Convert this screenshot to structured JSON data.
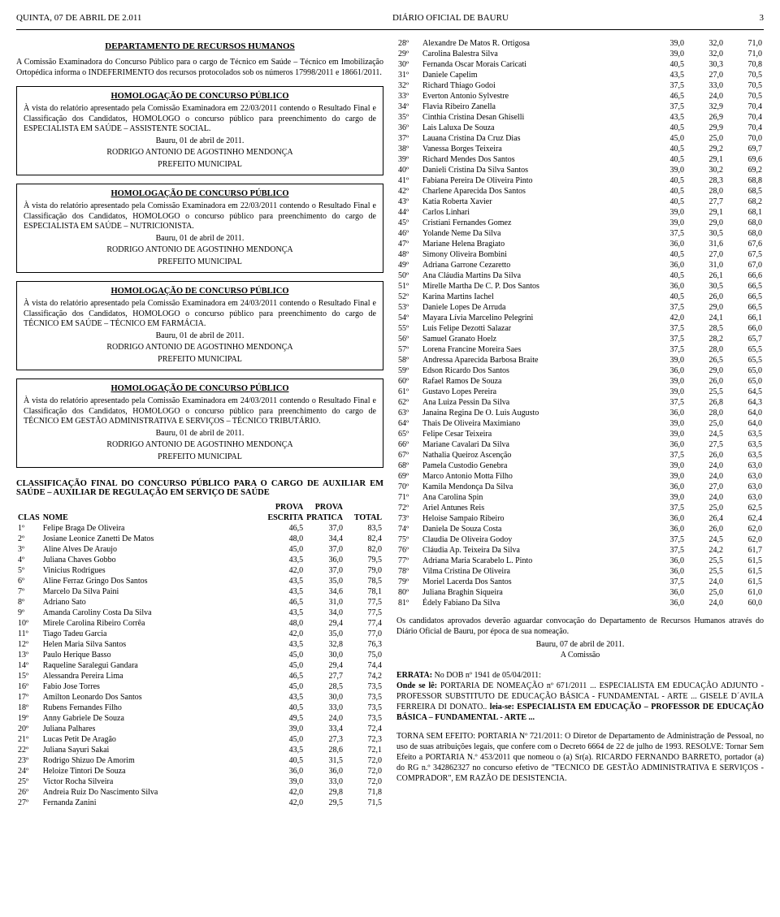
{
  "header": {
    "date": "QUINTA, 07 DE ABRIL DE 2.011",
    "title": "DIÁRIO OFICIAL DE BAURU",
    "page": "3"
  },
  "left": {
    "dept_title": "DEPARTAMENTO DE RECURSOS HUMANOS",
    "intro": "A Comissão Examinadora do Concurso Público para o cargo de Técnico em Saúde – Técnico em Imobilização Ortopédica informa o INDEFERIMENTO dos recursos protocolados sob os números 17998/2011 e 18661/2011.",
    "notices": [
      {
        "title": "HOMOLOGAÇÃO DE CONCURSO PÚBLICO",
        "body": "À vista do relatório apresentado pela Comissão Examinadora em 22/03/2011 contendo o Resultado Final e Classificação dos Candidatos, HOMOLOGO o concurso público para preenchimento do cargo de ESPECIALISTA EM SAÚDE – ASSISTENTE SOCIAL.",
        "date_line": "Bauru, 01 de abril de 2011.",
        "sign1": "RODRIGO ANTONIO DE AGOSTINHO MENDONÇA",
        "sign2": "PREFEITO MUNICIPAL"
      },
      {
        "title": "HOMOLOGAÇÃO DE CONCURSO PÚBLICO",
        "body": "À vista do relatório apresentado pela Comissão Examinadora em 22/03/2011 contendo o Resultado Final e Classificação dos Candidatos, HOMOLOGO o concurso público para preenchimento do cargo de ESPECIALISTA EM SAÚDE – NUTRICIONISTA.",
        "date_line": "Bauru, 01 de abril de 2011.",
        "sign1": "RODRIGO ANTONIO DE AGOSTINHO MENDONÇA",
        "sign2": "PREFEITO MUNICIPAL"
      },
      {
        "title": "HOMOLOGAÇÃO DE CONCURSO PÚBLICO",
        "body": "À vista do relatório apresentado pela Comissão Examinadora em 24/03/2011 contendo o Resultado Final e Classificação dos Candidatos, HOMOLOGO o concurso público para preenchimento do cargo de TÉCNICO EM SAÚDE – TÉCNICO EM FARMÁCIA.",
        "date_line": "Bauru, 01 de abril de 2011.",
        "sign1": "RODRIGO ANTONIO DE AGOSTINHO MENDONÇA",
        "sign2": "PREFEITO MUNICIPAL"
      },
      {
        "title": "HOMOLOGAÇÃO DE CONCURSO PÚBLICO",
        "body": "À vista do relatório apresentado pela Comissão Examinadora em 24/03/2011 contendo o Resultado Final e Classificação dos Candidatos, HOMOLOGO o concurso público para preenchimento do cargo de TÉCNICO EM GESTÃO ADMINISTRATIVA E SERVIÇOS – TÉCNICO TRIBUTÁRIO.",
        "date_line": "Bauru, 01 de abril de 2011.",
        "sign1": "RODRIGO ANTONIO DE AGOSTINHO MENDONÇA",
        "sign2": "PREFEITO MUNICIPAL"
      }
    ],
    "class_title": "CLASSIFICAÇÃO FINAL DO CONCURSO PÚBLICO PARA O CARGO DE AUXILIAR EM SAÚDE – AUXILIAR DE REGULAÇÃO EM SERVIÇO DE SAÚDE",
    "table_head": {
      "c1": "CLAS",
      "c2": "NOME",
      "c3a": "PROVA",
      "c3b": "ESCRITA",
      "c4a": "PROVA",
      "c4b": "PRATICA",
      "c5": "TOTAL"
    },
    "rows": [
      [
        "1º",
        "Felipe Braga De Oliveira",
        "46,5",
        "37,0",
        "83,5"
      ],
      [
        "2º",
        "Josiane Leonice Zanetti De Matos",
        "48,0",
        "34,4",
        "82,4"
      ],
      [
        "3º",
        "Aline Alves De Araujo",
        "45,0",
        "37,0",
        "82,0"
      ],
      [
        "4º",
        "Juliana Chaves Gobbo",
        "43,5",
        "36,0",
        "79,5"
      ],
      [
        "5º",
        "Vinicius Rodrigues",
        "42,0",
        "37,0",
        "79,0"
      ],
      [
        "6º",
        "Aline Ferraz Gringo Dos Santos",
        "43,5",
        "35,0",
        "78,5"
      ],
      [
        "7º",
        "Marcelo Da Silva Paini",
        "43,5",
        "34,6",
        "78,1"
      ],
      [
        "8º",
        "Adriano Sato",
        "46,5",
        "31,0",
        "77,5"
      ],
      [
        "9º",
        "Amanda Caroliny Costa Da Silva",
        "43,5",
        "34,0",
        "77,5"
      ],
      [
        "10º",
        "Mirele Carolina Ribeiro Corrêa",
        "48,0",
        "29,4",
        "77,4"
      ],
      [
        "11º",
        "Tiago Tadeu Garcia",
        "42,0",
        "35,0",
        "77,0"
      ],
      [
        "12º",
        "Helen Maria Silva Santos",
        "43,5",
        "32,8",
        "76,3"
      ],
      [
        "13º",
        "Paulo Herique Basso",
        "45,0",
        "30,0",
        "75,0"
      ],
      [
        "14º",
        "Raqueline Saralegui Gandara",
        "45,0",
        "29,4",
        "74,4"
      ],
      [
        "15º",
        "Alessandra Pereira Lima",
        "46,5",
        "27,7",
        "74,2"
      ],
      [
        "16º",
        "Fabio Jose Torres",
        "45,0",
        "28,5",
        "73,5"
      ],
      [
        "17º",
        "Amilton Leonardo Dos Santos",
        "43,5",
        "30,0",
        "73,5"
      ],
      [
        "18º",
        "Rubens Fernandes Filho",
        "40,5",
        "33,0",
        "73,5"
      ],
      [
        "19º",
        "Anny Gabriele De Souza",
        "49,5",
        "24,0",
        "73,5"
      ],
      [
        "20º",
        "Juliana Palhares",
        "39,0",
        "33,4",
        "72,4"
      ],
      [
        "21º",
        "Lucas Petit De Aragão",
        "45,0",
        "27,3",
        "72,3"
      ],
      [
        "22º",
        "Juliana Sayuri Sakai",
        "43,5",
        "28,6",
        "72,1"
      ],
      [
        "23º",
        "Rodrigo Shizuo De Amorim",
        "40,5",
        "31,5",
        "72,0"
      ],
      [
        "24º",
        "Heloize Tintori De Souza",
        "36,0",
        "36,0",
        "72,0"
      ],
      [
        "25º",
        "Victor Rocha Silveira",
        "39,0",
        "33,0",
        "72,0"
      ],
      [
        "26º",
        "Andreia Ruiz Do Nascimento Silva",
        "42,0",
        "29,8",
        "71,8"
      ],
      [
        "27º",
        "Fernanda Zanini",
        "42,0",
        "29,5",
        "71,5"
      ]
    ]
  },
  "right": {
    "rows": [
      [
        "28º",
        "Alexandre De Matos R. Ortigosa",
        "39,0",
        "32,0",
        "71,0"
      ],
      [
        "29º",
        "Carolina Balestra Silva",
        "39,0",
        "32,0",
        "71,0"
      ],
      [
        "30º",
        "Fernanda Oscar Morais Caricati",
        "40,5",
        "30,3",
        "70,8"
      ],
      [
        "31º",
        "Daniele Capelim",
        "43,5",
        "27,0",
        "70,5"
      ],
      [
        "32º",
        "Richard Thiago Godoi",
        "37,5",
        "33,0",
        "70,5"
      ],
      [
        "33º",
        "Everton Antonio Sylvestre",
        "46,5",
        "24,0",
        "70,5"
      ],
      [
        "34º",
        "Flavia Ribeiro Zanella",
        "37,5",
        "32,9",
        "70,4"
      ],
      [
        "35º",
        "Cinthia Cristina Desan Ghiselli",
        "43,5",
        "26,9",
        "70,4"
      ],
      [
        "36º",
        "Lais Laluxa De Souza",
        "40,5",
        "29,9",
        "70,4"
      ],
      [
        "37º",
        "Lauana Cristina Da Cruz Dias",
        "45,0",
        "25,0",
        "70,0"
      ],
      [
        "38º",
        "Vanessa Borges Teixeira",
        "40,5",
        "29,2",
        "69,7"
      ],
      [
        "39º",
        "Richard Mendes Dos Santos",
        "40,5",
        "29,1",
        "69,6"
      ],
      [
        "40º",
        "Danieli Cristina Da Silva Santos",
        "39,0",
        "30,2",
        "69,2"
      ],
      [
        "41º",
        "Fabiana Pereira De Oliveira Pinto",
        "40,5",
        "28,3",
        "68,8"
      ],
      [
        "42º",
        "Charlene Aparecida Dos Santos",
        "40,5",
        "28,0",
        "68,5"
      ],
      [
        "43º",
        "Katia Roberta Xavier",
        "40,5",
        "27,7",
        "68,2"
      ],
      [
        "44º",
        "Carlos Linhari",
        "39,0",
        "29,1",
        "68,1"
      ],
      [
        "45º",
        "Cristiani Fernandes Gomez",
        "39,0",
        "29,0",
        "68,0"
      ],
      [
        "46º",
        "Yolande Neme Da Silva",
        "37,5",
        "30,5",
        "68,0"
      ],
      [
        "47º",
        "Mariane Helena Bragiato",
        "36,0",
        "31,6",
        "67,6"
      ],
      [
        "48º",
        "Simony Oliveira Bombini",
        "40,5",
        "27,0",
        "67,5"
      ],
      [
        "49º",
        "Adriana Garrone Cezaretto",
        "36,0",
        "31,0",
        "67,0"
      ],
      [
        "50º",
        "Ana Cláudia Martins Da Silva",
        "40,5",
        "26,1",
        "66,6"
      ],
      [
        "51º",
        "Mirelle Martha De C. P. Dos Santos",
        "36,0",
        "30,5",
        "66,5"
      ],
      [
        "52º",
        "Karina Martins Iachel",
        "40,5",
        "26,0",
        "66,5"
      ],
      [
        "53º",
        "Daniele Lopes De Arruda",
        "37,5",
        "29,0",
        "66,5"
      ],
      [
        "54º",
        "Mayara Lívia Marcelino Pelegrini",
        "42,0",
        "24,1",
        "66,1"
      ],
      [
        "55º",
        "Luis Felipe Dezotti Salazar",
        "37,5",
        "28,5",
        "66,0"
      ],
      [
        "56º",
        "Samuel Granato Hoelz",
        "37,5",
        "28,2",
        "65,7"
      ],
      [
        "57º",
        "Lorena Francine Moreira Saes",
        "37,5",
        "28,0",
        "65,5"
      ],
      [
        "58º",
        "Andressa Aparecida Barbosa Braite",
        "39,0",
        "26,5",
        "65,5"
      ],
      [
        "59º",
        "Edson Ricardo Dos Santos",
        "36,0",
        "29,0",
        "65,0"
      ],
      [
        "60º",
        "Rafael Ramos De Souza",
        "39,0",
        "26,0",
        "65,0"
      ],
      [
        "61º",
        "Gustavo Lopes Pereira",
        "39,0",
        "25,5",
        "64,5"
      ],
      [
        "62º",
        "Ana Luiza Pessin Da Silva",
        "37,5",
        "26,8",
        "64,3"
      ],
      [
        "63º",
        "Janaina Regina De O. Luis Augusto",
        "36,0",
        "28,0",
        "64,0"
      ],
      [
        "64º",
        "Thais De Oliveira Maximiano",
        "39,0",
        "25,0",
        "64,0"
      ],
      [
        "65º",
        "Felipe Cesar Teixeira",
        "39,0",
        "24,5",
        "63,5"
      ],
      [
        "66º",
        "Mariane Cavalari Da Silva",
        "36,0",
        "27,5",
        "63,5"
      ],
      [
        "67º",
        "Nathalia Queiroz Ascenção",
        "37,5",
        "26,0",
        "63,5"
      ],
      [
        "68º",
        "Pamela Custodio Genebra",
        "39,0",
        "24,0",
        "63,0"
      ],
      [
        "69º",
        "Marco Antonio Motta Filho",
        "39,0",
        "24,0",
        "63,0"
      ],
      [
        "70º",
        "Kamila Mendonça Da Silva",
        "36,0",
        "27,0",
        "63,0"
      ],
      [
        "71º",
        "Ana Carolina Spin",
        "39,0",
        "24,0",
        "63,0"
      ],
      [
        "72º",
        "Ariel Antunes Reis",
        "37,5",
        "25,0",
        "62,5"
      ],
      [
        "73º",
        "Heloise Sampaio Ribeiro",
        "36,0",
        "26,4",
        "62,4"
      ],
      [
        "74º",
        "Daniela De Souza Costa",
        "36,0",
        "26,0",
        "62,0"
      ],
      [
        "75º",
        "Claudia De Oliveira Godoy",
        "37,5",
        "24,5",
        "62,0"
      ],
      [
        "76º",
        "Cláudia Ap. Teixeira Da Silva",
        "37,5",
        "24,2",
        "61,7"
      ],
      [
        "77º",
        "Adriana Maria Scarabelo L. Pinto",
        "36,0",
        "25,5",
        "61,5"
      ],
      [
        "78º",
        "Vilma Cristina De Oliveira",
        "36,0",
        "25,5",
        "61,5"
      ],
      [
        "79º",
        "Moriel Lacerda Dos Santos",
        "37,5",
        "24,0",
        "61,5"
      ],
      [
        "80º",
        "Juliana Braghin Siqueira",
        "36,0",
        "25,0",
        "61,0"
      ],
      [
        "81º",
        "Édely Fabiano Da Silva",
        "36,0",
        "24,0",
        "60,0"
      ]
    ],
    "aprov_text": "Os candidatos aprovados deverão aguardar convocação do Departamento de Recursos Humanos através do Diário Oficial de Bauru, por época de sua nomeação.",
    "aprov_date": "Bauru, 07 de abril de 2011.",
    "aprov_sign": "A Comissão",
    "errata_label": "ERRATA:",
    "errata_body": " No DOB nº 1941 de 05/04/2011:",
    "errata_line2a": "Onde se lê:",
    "errata_line2b": " PORTARIA DE NOMEAÇÃO nº 671/2011 ... ESPECIALISTA EM EDUCAÇÃO ADJUNTO - PROFESSOR SUBSTITUTO DE EDUCAÇÃO BÁSICA - FUNDAMENTAL - ARTE ... GISELE D´AVILA FERREIRA DI DONATO.. ",
    "errata_line3a": "leia-se: ESPECIALISTA EM EDUCAÇÃO – PROFESSOR DE EDUCAÇÃO BÁSICA – FUNDAMENTAL - ARTE ...",
    "torna_label": "TORNA SEM EFEITO: PORTARIA Nº 721/2011:",
    "torna_body": " O Diretor de Departamento de Administração de Pessoal, no uso de suas atribuições legais, que confere com o Decreto 6664 de 22 de julho de 1993. RESOLVE: Tornar Sem Efeito a PORTARIA N.º 453/2011 que nomeou o (a) Sr(a). RICARDO FERNANDO BARRETO, portador (a) do RG n.º 342862327 no concurso efetivo de \"TECNICO DE GESTÃO ADMINISTRATIVA E SERVIÇOS - COMPRADOR\", EM RAZÃO DE DESISTENCIA."
  }
}
